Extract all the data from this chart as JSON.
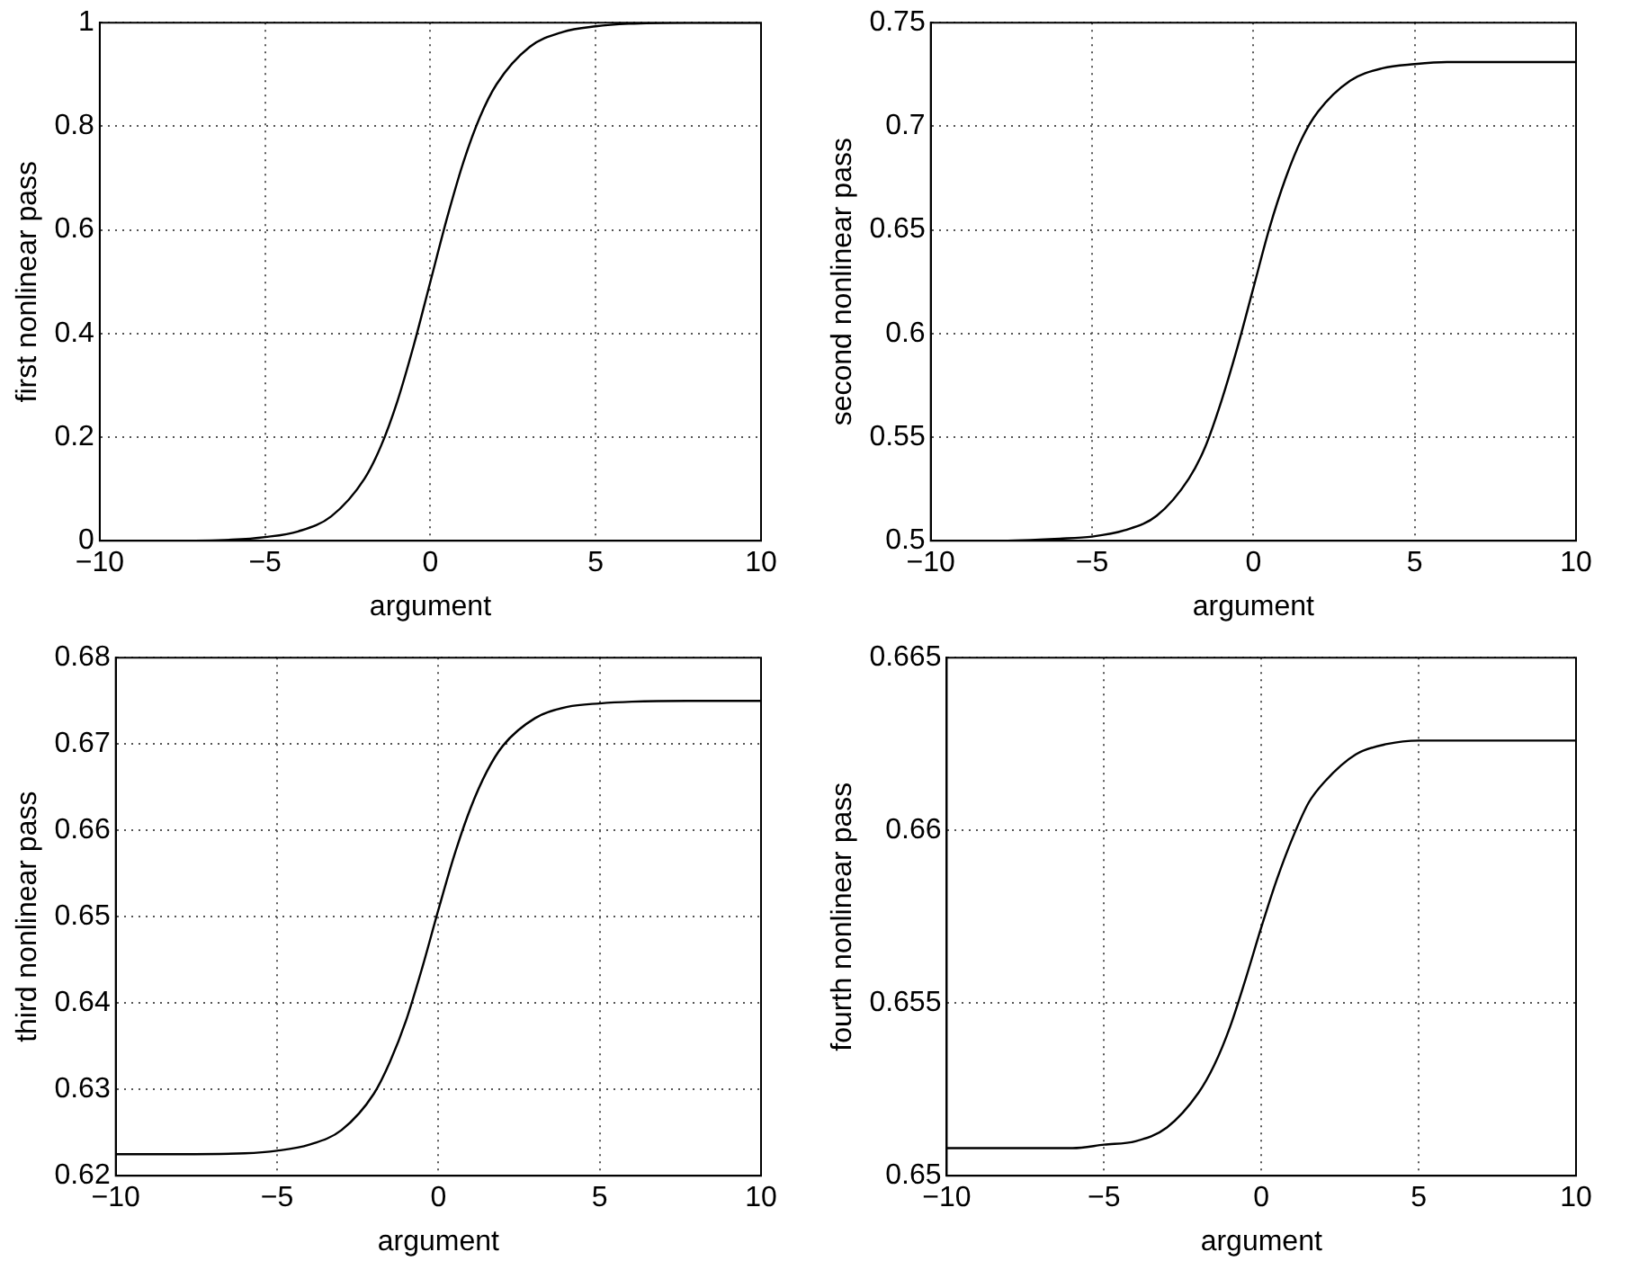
{
  "chart_data": [
    {
      "type": "line",
      "xlabel": "argument",
      "ylabel": "first nonlinear pass",
      "x": [
        -10,
        -8,
        -6,
        -5,
        -4,
        -3,
        -2,
        -1.5,
        -1,
        -0.5,
        0,
        0.5,
        1,
        1.5,
        2,
        3,
        4,
        5,
        6,
        8,
        10
      ],
      "series": [
        {
          "color": "#000000",
          "values": [
            0,
            0,
            0.002,
            0.007,
            0.018,
            0.047,
            0.119,
            0.182,
            0.269,
            0.378,
            0.5,
            0.622,
            0.731,
            0.818,
            0.881,
            0.953,
            0.982,
            0.993,
            0.998,
            1,
            1
          ]
        }
      ],
      "xlim": [
        -10,
        10
      ],
      "ylim": [
        0,
        1
      ],
      "xticks": [
        -10,
        -5,
        0,
        5,
        10
      ],
      "yticks": [
        0,
        0.2,
        0.4,
        0.6,
        0.8,
        1
      ],
      "grid": true
    },
    {
      "type": "line",
      "xlabel": "argument",
      "ylabel": "second nonlinear pass",
      "x": [
        -10,
        -8,
        -6,
        -5,
        -4,
        -3,
        -2,
        -1.5,
        -1,
        -0.5,
        0,
        0.5,
        1,
        1.5,
        2,
        3,
        4,
        5,
        6,
        8,
        10
      ],
      "series": [
        {
          "color": "#000000",
          "values": [
            0.5,
            0.5,
            0.501,
            0.502,
            0.505,
            0.512,
            0.53,
            0.545,
            0.567,
            0.593,
            0.622,
            0.651,
            0.675,
            0.694,
            0.707,
            0.722,
            0.728,
            0.73,
            0.731,
            0.731,
            0.731
          ]
        }
      ],
      "xlim": [
        -10,
        10
      ],
      "ylim": [
        0.5,
        0.75
      ],
      "xticks": [
        -10,
        -5,
        0,
        5,
        10
      ],
      "yticks": [
        0.5,
        0.55,
        0.6,
        0.65,
        0.7,
        0.75
      ],
      "grid": true
    },
    {
      "type": "line",
      "xlabel": "argument",
      "ylabel": "third nonlinear pass",
      "x": [
        -10,
        -8,
        -6,
        -5,
        -4,
        -3,
        -2,
        -1.5,
        -1,
        -0.5,
        0,
        0.5,
        1,
        1.5,
        2,
        3,
        4,
        5,
        6,
        8,
        10
      ],
      "series": [
        {
          "color": "#000000",
          "values": [
            0.6225,
            0.6225,
            0.6226,
            0.6229,
            0.6236,
            0.6253,
            0.6295,
            0.6332,
            0.638,
            0.6441,
            0.6508,
            0.6572,
            0.6626,
            0.6668,
            0.6698,
            0.673,
            0.6743,
            0.6747,
            0.6749,
            0.675,
            0.675
          ]
        }
      ],
      "xlim": [
        -10,
        10
      ],
      "ylim": [
        0.62,
        0.68
      ],
      "xticks": [
        -10,
        -5,
        0,
        5,
        10
      ],
      "yticks": [
        0.62,
        0.63,
        0.64,
        0.65,
        0.66,
        0.67,
        0.68
      ],
      "grid": true
    },
    {
      "type": "line",
      "xlabel": "argument",
      "ylabel": "fourth nonlinear pass",
      "x": [
        -10,
        -8,
        -6,
        -5,
        -4,
        -3,
        -2,
        -1.5,
        -1,
        -0.5,
        0,
        0.5,
        1,
        1.5,
        2,
        3,
        4,
        5,
        6,
        8,
        10
      ],
      "series": [
        {
          "color": "#000000",
          "values": [
            0.6508,
            0.6508,
            0.6508,
            0.6509,
            0.651,
            0.6514,
            0.6524,
            0.6532,
            0.6543,
            0.6557,
            0.6572,
            0.6586,
            0.6598,
            0.6608,
            0.6614,
            0.6622,
            0.6625,
            0.6626,
            0.6626,
            0.6626,
            0.6626
          ]
        }
      ],
      "xlim": [
        -10,
        10
      ],
      "ylim": [
        0.65,
        0.665
      ],
      "xticks": [
        -10,
        -5,
        0,
        5,
        10
      ],
      "yticks": [
        0.65,
        0.655,
        0.66,
        0.665
      ],
      "grid": true
    }
  ]
}
